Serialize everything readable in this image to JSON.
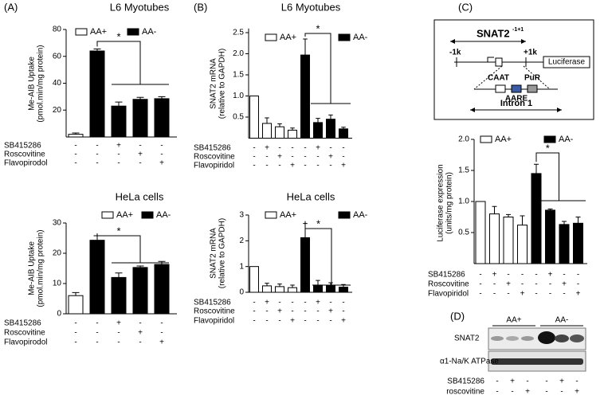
{
  "panel_labels": [
    "(A)",
    "(B)",
    "(C)",
    "(D)"
  ],
  "chart_data": [
    {
      "type": "bar",
      "title": "L6 Myotubes",
      "y_label": [
        "Me-AIB Uptake",
        "(pmol.min/mg protein)"
      ],
      "ylim": [
        0,
        80
      ],
      "yticks": [
        20,
        40,
        60,
        80
      ],
      "annotation": "*",
      "series": [
        {
          "name": "AA+",
          "color": "#ffffff",
          "values": [
            2,
            null,
            null,
            null,
            null
          ],
          "errors": [
            1,
            null,
            null,
            null,
            null
          ]
        },
        {
          "name": "AA-",
          "color": "#000000",
          "values": [
            null,
            64,
            23,
            28,
            28.5
          ],
          "errors": [
            null,
            1.5,
            3,
            1.5,
            1.5
          ]
        }
      ],
      "treatments": [
        {
          "name": "SB415286",
          "signs": [
            "-",
            "-",
            "+",
            "-",
            "-"
          ]
        },
        {
          "name": "Roscovitine",
          "signs": [
            "-",
            "-",
            "-",
            "+",
            "-"
          ]
        },
        {
          "name": "Flavopirodol",
          "signs": [
            "-",
            "-",
            "-",
            "-",
            "+"
          ]
        }
      ]
    },
    {
      "type": "bar",
      "title": "HeLa cells",
      "y_label": [
        "Me-AIB Uptake",
        "(pmol.min/mg protein)"
      ],
      "ylim": [
        0,
        30
      ],
      "yticks": [
        0,
        10,
        20,
        30
      ],
      "annotation": "*",
      "series": [
        {
          "name": "AA+",
          "color": "#ffffff",
          "values": [
            6,
            null,
            null,
            null,
            null
          ],
          "errors": [
            1,
            null,
            null,
            null,
            null
          ]
        },
        {
          "name": "AA-",
          "color": "#000000",
          "values": [
            null,
            24.3,
            12,
            15.3,
            16.3
          ],
          "errors": [
            null,
            1.5,
            1.5,
            0.5,
            1
          ]
        }
      ],
      "treatments": [
        {
          "name": "SB415286",
          "signs": [
            "-",
            "-",
            "+",
            "-",
            "-"
          ]
        },
        {
          "name": "Roscovitine",
          "signs": [
            "-",
            "-",
            "-",
            "+",
            "-"
          ]
        },
        {
          "name": "Flavopirodol",
          "signs": [
            "-",
            "-",
            "-",
            "-",
            "+"
          ]
        }
      ]
    },
    {
      "type": "bar",
      "title": "L6 Myotubes",
      "y_label": [
        "SNAT2 mRNA",
        "(relative to GAPDH)"
      ],
      "ylim": [
        0,
        2.6
      ],
      "yticks": [
        0.5,
        {
          "value": 1,
          "label": "1.0"
        },
        1.5,
        {
          "value": 2,
          "label": "2.0"
        },
        2.5
      ],
      "annotation": "*",
      "series": [
        {
          "name": "AA+",
          "color": "#ffffff",
          "values": [
            1,
            0.35,
            0.27,
            0.19,
            null,
            null,
            null,
            null
          ],
          "errors": [
            null,
            0.13,
            0.07,
            0.05,
            null,
            null,
            null,
            null
          ]
        },
        {
          "name": "AA-",
          "color": "#000000",
          "values": [
            null,
            null,
            null,
            null,
            1.97,
            0.37,
            0.45,
            0.22
          ],
          "errors": [
            null,
            null,
            null,
            null,
            0.38,
            0.1,
            0.1,
            0.04
          ]
        }
      ],
      "treatments": [
        {
          "name": "SB415286",
          "signs": [
            "-",
            "+",
            "-",
            "-",
            "-",
            "+",
            "-",
            "-"
          ]
        },
        {
          "name": "Roscovitine",
          "signs": [
            "-",
            "-",
            "+",
            "-",
            "-",
            "-",
            "+",
            "-"
          ]
        },
        {
          "name": "Flavopiridol",
          "signs": [
            "-",
            "-",
            "-",
            "+",
            "-",
            "-",
            "-",
            "+"
          ]
        }
      ]
    },
    {
      "type": "bar",
      "title": "HeLa cells",
      "y_label": [
        "SNAT2 mRNA",
        "(relative to GAPDH)"
      ],
      "ylim": [
        0,
        3
      ],
      "yticks": [
        0,
        1,
        2,
        3
      ],
      "annotation": "*",
      "series": [
        {
          "name": "AA+",
          "color": "#ffffff",
          "values": [
            1,
            0.25,
            0.22,
            0.18,
            null,
            null,
            null,
            null
          ],
          "errors": [
            null,
            0.1,
            0.1,
            0.1,
            null,
            null,
            null,
            null
          ]
        },
        {
          "name": "AA-",
          "color": "#000000",
          "values": [
            null,
            null,
            null,
            null,
            2.12,
            0.28,
            0.25,
            0.2
          ],
          "errors": [
            null,
            null,
            null,
            null,
            0.55,
            0.18,
            0.12,
            0.1
          ]
        }
      ],
      "treatments": [
        {
          "name": "SB415286",
          "signs": [
            "-",
            "+",
            "-",
            "-",
            "-",
            "+",
            "-",
            "-"
          ]
        },
        {
          "name": "Roscovitine",
          "signs": [
            "-",
            "-",
            "+",
            "-",
            "-",
            "-",
            "+",
            "-"
          ]
        },
        {
          "name": "Flavopiridol",
          "signs": [
            "-",
            "-",
            "-",
            "+",
            "-",
            "-",
            "-",
            "+"
          ]
        }
      ]
    },
    {
      "type": "bar",
      "y_label": [
        "Luciferase expression",
        "(units/mg protein)"
      ],
      "ylim": [
        0,
        2
      ],
      "yticks": [
        0.5,
        {
          "value": 1,
          "label": "1.0"
        },
        1.5,
        {
          "value": 2,
          "label": "2.0"
        }
      ],
      "annotation": "*",
      "series": [
        {
          "name": "AA+",
          "color": "#ffffff",
          "values": [
            1,
            0.8,
            0.75,
            0.62,
            null,
            null,
            null,
            null
          ],
          "errors": [
            null,
            0.12,
            0.04,
            0.15,
            null,
            null,
            null,
            null
          ]
        },
        {
          "name": "AA-",
          "color": "#000000",
          "values": [
            null,
            null,
            null,
            null,
            1.45,
            0.86,
            0.63,
            0.65
          ],
          "errors": [
            null,
            null,
            null,
            null,
            0.15,
            0.02,
            0.05,
            0.1
          ]
        }
      ],
      "treatments": [
        {
          "name": "SB415286",
          "signs": [
            "-",
            "+",
            "-",
            "-",
            "-",
            "+",
            "-",
            "-"
          ]
        },
        {
          "name": "Roscovitine",
          "signs": [
            "-",
            "-",
            "+",
            "-",
            "-",
            "-",
            "+",
            "-"
          ]
        },
        {
          "name": "Flavopiridol",
          "signs": [
            "-",
            "-",
            "-",
            "+",
            "-",
            "-",
            "-",
            "+"
          ]
        }
      ]
    }
  ],
  "diagram": {
    "title": "SNAT2",
    "superscript": "-1+1",
    "left": "-1k",
    "right": "+1k",
    "box": "Luciferase",
    "caat": "CAAT",
    "pur": "PuR",
    "aare": "AARE",
    "intron": "Intron 1"
  },
  "blot": {
    "groups": [
      "AA+",
      "AA-"
    ],
    "bands": [
      "SNAT2",
      "α1-Na/K ATPase"
    ],
    "treatments": [
      {
        "name": "SB415286",
        "signs": [
          "-",
          "+",
          "-",
          "-",
          "+",
          "-"
        ]
      },
      {
        "name": "roscovitine",
        "signs": [
          "-",
          "-",
          "+",
          "-",
          "-",
          "+"
        ]
      }
    ]
  }
}
